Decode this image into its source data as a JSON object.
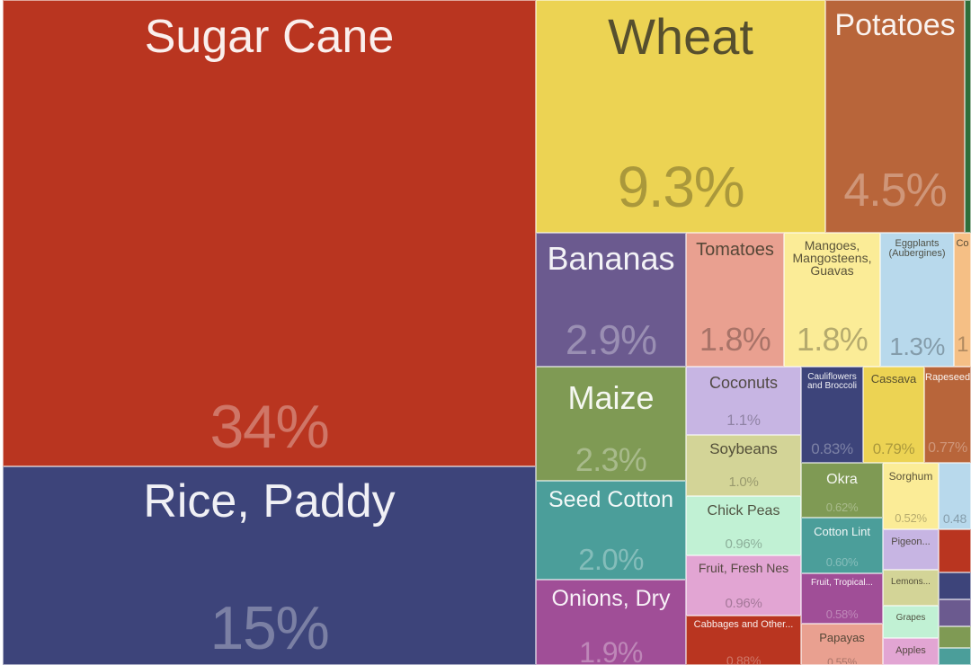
{
  "chart_data": {
    "type": "treemap",
    "items": [
      {
        "label": "Sugar Cane",
        "value": "34%",
        "color": "#b93520"
      },
      {
        "label": "Rice, Paddy",
        "value": "15%",
        "color": "#3d447a"
      },
      {
        "label": "Wheat",
        "value": "9.3%",
        "color": "#ecd353"
      },
      {
        "label": "Potatoes",
        "value": "4.5%",
        "color": "#b8653a"
      },
      {
        "label": "Bananas",
        "value": "2.9%",
        "color": "#6b5a8f"
      },
      {
        "label": "Maize",
        "value": "2.3%",
        "color": "#7f9a54"
      },
      {
        "label": "Seed Cotton",
        "value": "2.0%",
        "color": "#4b9e9a"
      },
      {
        "label": "Onions, Dry",
        "value": "1.9%",
        "color": "#a04e97"
      },
      {
        "label": "Tomatoes",
        "value": "1.8%",
        "color": "#e9a090"
      },
      {
        "label": "Mangoes,\nMangosteens,\nGuavas",
        "value": "1.8%",
        "color": "#fbec97"
      },
      {
        "label": "Eggplants\n(Aubergines)",
        "value": "1.3%",
        "color": "#b8d9ec"
      },
      {
        "label": "Co",
        "value": "1",
        "color": "#f5bf85"
      },
      {
        "label": "Coconuts",
        "value": "1.1%",
        "color": "#c7b5e3"
      },
      {
        "label": "Soybeans",
        "value": "1.0%",
        "color": "#d3d497"
      },
      {
        "label": "Chick Peas",
        "value": "0.96%",
        "color": "#c1f1d4"
      },
      {
        "label": "Fruit, Fresh Nes",
        "value": "0.96%",
        "color": "#e2a5d3"
      },
      {
        "label": "Cabbages and Other...",
        "value": "0.88%",
        "color": "#b93520"
      },
      {
        "label": "Cauliflowers\nand Broccoli",
        "value": "0.83%",
        "color": "#3d447a"
      },
      {
        "label": "Cassava",
        "value": "0.79%",
        "color": "#ecd353"
      },
      {
        "label": "Rapeseed",
        "value": "0.77%",
        "color": "#b8653a"
      },
      {
        "label": "Okra",
        "value": "0.62%",
        "color": "#7f9a54"
      },
      {
        "label": "Cotton Lint",
        "value": "0.60%",
        "color": "#4b9e9a"
      },
      {
        "label": "Fruit, Tropical...",
        "value": "0.58%",
        "color": "#a04e97"
      },
      {
        "label": "Papayas",
        "value": "0.55%",
        "color": "#e9a090"
      },
      {
        "label": "Sorghum",
        "value": "0.52%",
        "color": "#fbec97"
      },
      {
        "label": "",
        "value": "0.48",
        "color": "#b8d9ec"
      },
      {
        "label": "Pigeon...",
        "value": "",
        "color": "#c7b5e3"
      },
      {
        "label": "Lemons...",
        "value": "",
        "color": "#d3d497"
      },
      {
        "label": "Grapes",
        "value": "",
        "color": "#c1f1d4"
      },
      {
        "label": "Apples",
        "value": "",
        "color": "#e2a5d3"
      },
      {
        "label": "",
        "value": "",
        "color": "#2f6e3a"
      },
      {
        "label": "",
        "value": "",
        "color": "#b93520"
      },
      {
        "label": "",
        "value": "",
        "color": "#3d447a"
      },
      {
        "label": "",
        "value": "",
        "color": "#6b5a8f"
      },
      {
        "label": "",
        "value": "",
        "color": "#7f9a54"
      },
      {
        "label": "",
        "value": "",
        "color": "#4b9e9a"
      },
      {
        "label": "",
        "value": "",
        "color": "#a04e97"
      }
    ]
  }
}
